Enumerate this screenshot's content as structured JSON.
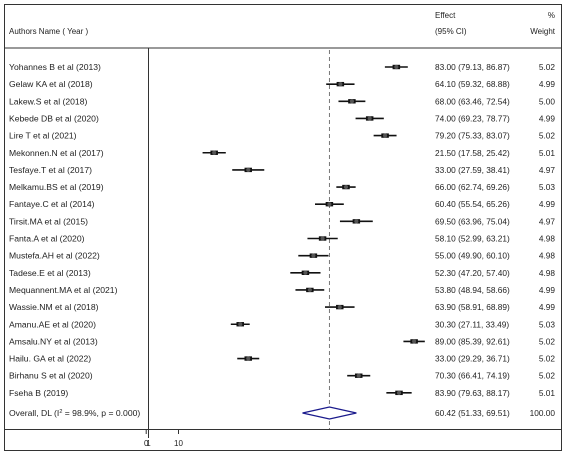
{
  "header": {
    "authors_col": "Authors Name ( Year )",
    "effect_col": "Effect",
    "ci_col": "(95% CI)",
    "pct_col": "%",
    "weight_col": "Weight"
  },
  "chart_data": {
    "type": "forest",
    "xaxis": {
      "ticks": [
        0,
        1,
        10
      ],
      "tick_labels": [
        "0",
        "1",
        "10"
      ]
    },
    "null_line": 1,
    "reference_line": 60.42,
    "studies": [
      {
        "label": "Yohannes B et al (2013)",
        "effect": 83.0,
        "lo": 79.13,
        "hi": 86.87,
        "est_text": "83.00 (79.13, 86.87)",
        "weight": "5.02"
      },
      {
        "label": "Gelaw KA et al (2018)",
        "effect": 64.1,
        "lo": 59.32,
        "hi": 68.88,
        "est_text": "64.10 (59.32, 68.88)",
        "weight": "4.99"
      },
      {
        "label": "Lakew.S et al (2018)",
        "effect": 68.0,
        "lo": 63.46,
        "hi": 72.54,
        "est_text": "68.00 (63.46, 72.54)",
        "weight": "5.00"
      },
      {
        "label": "Kebede DB et al (2020)",
        "effect": 74.0,
        "lo": 69.23,
        "hi": 78.77,
        "est_text": "74.00 (69.23, 78.77)",
        "weight": "4.99"
      },
      {
        "label": "Lire T et al (2021)",
        "effect": 79.2,
        "lo": 75.33,
        "hi": 83.07,
        "est_text": "79.20 (75.33, 83.07)",
        "weight": "5.02"
      },
      {
        "label": "Mekonnen.N et al (2017)",
        "effect": 21.5,
        "lo": 17.58,
        "hi": 25.42,
        "est_text": "21.50 (17.58, 25.42)",
        "weight": "5.01"
      },
      {
        "label": "Tesfaye.T et al (2017)",
        "effect": 33.0,
        "lo": 27.59,
        "hi": 38.41,
        "est_text": "33.00 (27.59, 38.41)",
        "weight": "4.97"
      },
      {
        "label": "Melkamu.BS et al (2019)",
        "effect": 66.0,
        "lo": 62.74,
        "hi": 69.26,
        "est_text": "66.00 (62.74, 69.26)",
        "weight": "5.03"
      },
      {
        "label": "Fantaye.C et al (2014)",
        "effect": 60.4,
        "lo": 55.54,
        "hi": 65.26,
        "est_text": "60.40 (55.54, 65.26)",
        "weight": "4.99"
      },
      {
        "label": "Tirsit.MA et al (2015)",
        "effect": 69.5,
        "lo": 63.96,
        "hi": 75.04,
        "est_text": "69.50 (63.96, 75.04)",
        "weight": "4.97"
      },
      {
        "label": "Fanta.A et al  (2020)",
        "effect": 58.1,
        "lo": 52.99,
        "hi": 63.21,
        "est_text": "58.10 (52.99, 63.21)",
        "weight": "4.98"
      },
      {
        "label": "Mustefa.AH et al  (2022)",
        "effect": 55.0,
        "lo": 49.9,
        "hi": 60.1,
        "est_text": "55.00 (49.90, 60.10)",
        "weight": "4.98"
      },
      {
        "label": "Tadese.E et al  (2013)",
        "effect": 52.3,
        "lo": 47.2,
        "hi": 57.4,
        "est_text": "52.30 (47.20, 57.40)",
        "weight": "4.98"
      },
      {
        "label": "Mequannent.MA et al  (2021)",
        "effect": 53.8,
        "lo": 48.94,
        "hi": 58.66,
        "est_text": "53.80 (48.94, 58.66)",
        "weight": "4.99"
      },
      {
        "label": "Wassie.NM et al  (2018)",
        "effect": 63.9,
        "lo": 58.91,
        "hi": 68.89,
        "est_text": "63.90 (58.91, 68.89)",
        "weight": "4.99"
      },
      {
        "label": "Amanu.AE et al (2020)",
        "effect": 30.3,
        "lo": 27.11,
        "hi": 33.49,
        "est_text": "30.30 (27.11, 33.49)",
        "weight": "5.03"
      },
      {
        "label": "Amsalu.NY et al  (2013)",
        "effect": 89.0,
        "lo": 85.39,
        "hi": 92.61,
        "est_text": "89.00 (85.39, 92.61)",
        "weight": "5.02"
      },
      {
        "label": "Hailu. GA et al  (2022)",
        "effect": 33.0,
        "lo": 29.29,
        "hi": 36.71,
        "est_text": "33.00 (29.29, 36.71)",
        "weight": "5.02"
      },
      {
        "label": "Birhanu S et al (2020)",
        "effect": 70.3,
        "lo": 66.41,
        "hi": 74.19,
        "est_text": "70.30 (66.41, 74.19)",
        "weight": "5.02"
      },
      {
        "label": "Fseha B (2019)",
        "effect": 83.9,
        "lo": 79.63,
        "hi": 88.17,
        "est_text": "83.90 (79.63, 88.17)",
        "weight": "5.01"
      }
    ],
    "overall": {
      "label_pre": "Overall, DL (I",
      "label_sup": "2",
      "label_post": " = 98.9%, p = 0.000)",
      "effect": 60.42,
      "lo": 51.33,
      "hi": 69.51,
      "est_text": "60.42 (51.33, 69.51)",
      "weight": "100.00"
    }
  }
}
